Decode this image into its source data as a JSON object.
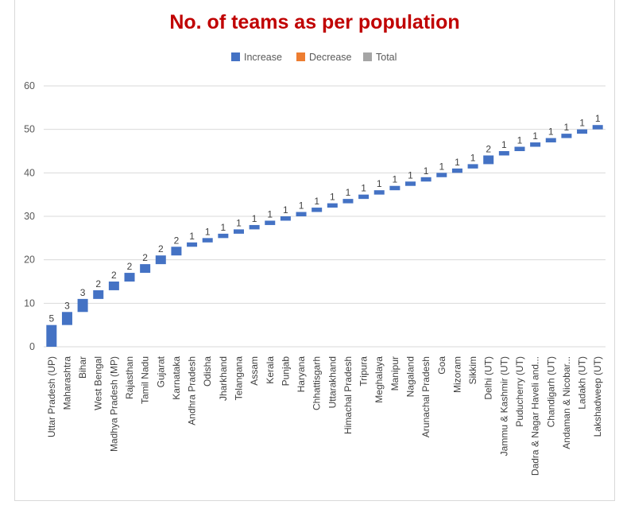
{
  "chart_data": {
    "type": "waterfall",
    "title": "No. of teams as per population",
    "legend": [
      {
        "label": "Increase",
        "color": "#4472c4"
      },
      {
        "label": "Decrease",
        "color": "#ed7d31"
      },
      {
        "label": "Total",
        "color": "#a5a5a5"
      }
    ],
    "legend_position": "top",
    "ylim": [
      0,
      60
    ],
    "yticks": [
      0,
      10,
      20,
      30,
      40,
      50,
      60
    ],
    "grid": true,
    "categories": [
      "Uttar Pradesh (UP)",
      "Maharashtra",
      "Bihar",
      "West Bengal",
      "Madhya Pradesh (MP)",
      "Rajasthan",
      "Tamil Nadu",
      "Gujarat",
      "Karnataka",
      "Andhra Pradesh",
      "Odisha",
      "Jharkhand",
      "Telangana",
      "Assam",
      "Kerala",
      "Punjab",
      "Haryana",
      "Chhattisgarh",
      "Uttarakhand",
      "Himachal Pradesh",
      "Tripura",
      "Meghalaya",
      "Manipur",
      "Nagaland",
      "Arunachal Pradesh",
      "Goa",
      "Mizoram",
      "Sikkim",
      "Delhi (UT)",
      "Jammu & Kashmir (UT)",
      "Puducherry (UT)",
      "Dadra & Nagar Haveli and...",
      "Chandigarh (UT)",
      "Andaman & Nicobar...",
      "Ladakh (UT)",
      "Lakshadweep (UT)"
    ],
    "values": [
      5,
      3,
      3,
      2,
      2,
      2,
      2,
      2,
      2,
      1,
      1,
      1,
      1,
      1,
      1,
      1,
      1,
      1,
      1,
      1,
      1,
      1,
      1,
      1,
      1,
      1,
      1,
      1,
      2,
      1,
      1,
      1,
      1,
      1,
      1,
      1
    ]
  }
}
